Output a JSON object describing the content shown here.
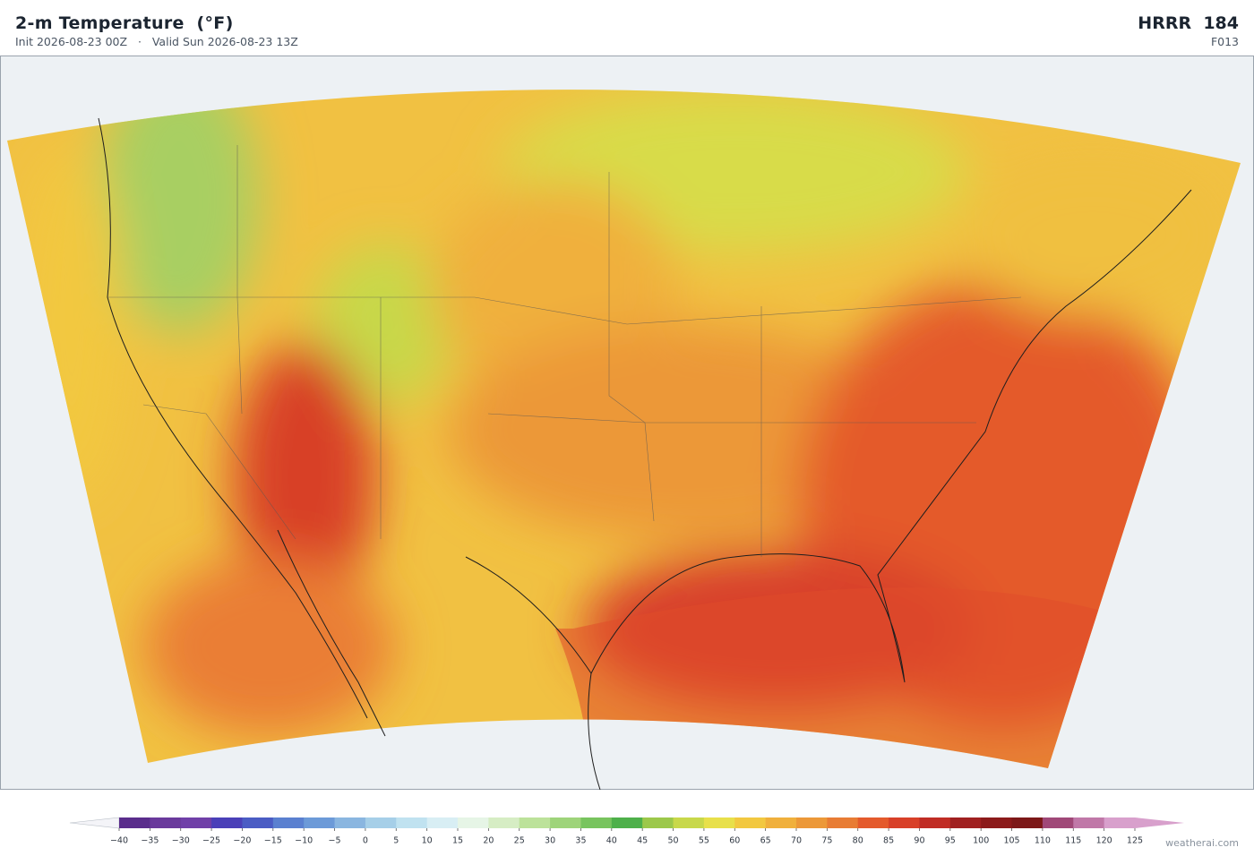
{
  "header": {
    "title": "2-m Temperature  (°F)",
    "subtitle": "Init 2026-08-23 00Z   ·   Valid Sun 2026-08-23 13Z",
    "model": "HRRR",
    "run": "184",
    "forecast_hour": "F013"
  },
  "colorbar": {
    "lim": [
      -40,
      125
    ],
    "ticks": [
      {
        "value": -40,
        "label": "−40"
      },
      {
        "value": -35,
        "label": "−35"
      },
      {
        "value": -30,
        "label": "−30"
      },
      {
        "value": -25,
        "label": "−25"
      },
      {
        "value": -20,
        "label": "−20"
      },
      {
        "value": -15,
        "label": "−15"
      },
      {
        "value": -10,
        "label": "−10"
      },
      {
        "value": -5,
        "label": "−5"
      },
      0,
      5,
      10,
      15,
      20,
      25,
      30,
      35,
      40,
      45,
      50,
      55,
      60,
      65,
      70,
      75,
      80,
      85,
      90,
      95,
      100,
      105,
      110,
      115,
      120,
      125
    ],
    "colors": [
      "#5a2d8c",
      "#6a3a9c",
      "#7040a8",
      "#4a40b8",
      "#4a5cc4",
      "#5a80d0",
      "#6c9ad8",
      "#8ab6e0",
      "#a6cfe8",
      "#c0e2f0",
      "#d8eef4",
      "#e6f5e6",
      "#d6edc4",
      "#bce29a",
      "#9ed47a",
      "#78c45e",
      "#4eb04a",
      "#9cc84a",
      "#c8d84a",
      "#e8e04a",
      "#f2c840",
      "#f0b03c",
      "#ec9838",
      "#e87c34",
      "#e45a2c",
      "#d84028",
      "#c02c24",
      "#a02020",
      "#8c1a1a",
      "#7c1818",
      "#a04878",
      "#c078a8",
      "#d8a0cc"
    ],
    "extend_colors": [
      "#f4f4f8",
      "#d8a0cc"
    ]
  },
  "footer": {
    "watermark": "weatherai.com"
  }
}
